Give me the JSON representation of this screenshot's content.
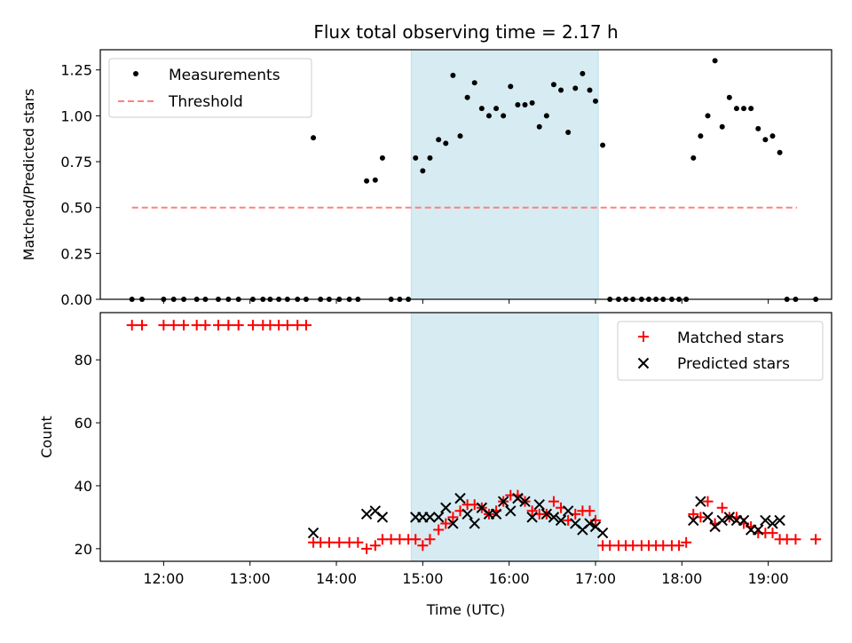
{
  "chart_data": [
    {
      "type": "scatter",
      "title": "Flux total observing time = 2.17 h",
      "xlabel": "",
      "ylabel": "Matched/Predicted stars",
      "xlim": [
        "11:16",
        "19:44"
      ],
      "ylim": [
        0,
        1.36
      ],
      "yticks": [
        "0.00",
        "0.25",
        "0.50",
        "0.75",
        "1.00",
        "1.25"
      ],
      "shaded_region": {
        "start": "14:52",
        "end": "17:02",
        "color": "#add8e6"
      },
      "legend": {
        "position": "top-left",
        "entries": [
          "Measurements",
          "Threshold"
        ]
      },
      "threshold": {
        "name": "Threshold",
        "value": 0.5,
        "x_start": "11:38",
        "x_end": "19:20",
        "color": "#ff8080"
      },
      "series": [
        {
          "name": "Measurements",
          "color": "#000000",
          "points": [
            [
              "11:38",
              0
            ],
            [
              "11:45",
              0
            ],
            [
              "12:00",
              0
            ],
            [
              "12:07",
              0
            ],
            [
              "12:14",
              0
            ],
            [
              "12:23",
              0
            ],
            [
              "12:29",
              0
            ],
            [
              "12:38",
              0
            ],
            [
              "12:45",
              0
            ],
            [
              "12:52",
              0
            ],
            [
              "13:02",
              0
            ],
            [
              "13:09",
              0
            ],
            [
              "13:14",
              0
            ],
            [
              "13:20",
              0
            ],
            [
              "13:26",
              0
            ],
            [
              "13:33",
              0
            ],
            [
              "13:39",
              0
            ],
            [
              "13:44",
              0.88
            ],
            [
              "13:49",
              0
            ],
            [
              "13:55",
              0
            ],
            [
              "14:02",
              0
            ],
            [
              "14:09",
              0
            ],
            [
              "14:15",
              0
            ],
            [
              "14:21",
              0.645
            ],
            [
              "14:27",
              0.65
            ],
            [
              "14:32",
              0.77
            ],
            [
              "14:38",
              0
            ],
            [
              "14:44",
              0
            ],
            [
              "14:50",
              0
            ],
            [
              "14:55",
              0.77
            ],
            [
              "15:00",
              0.7
            ],
            [
              "15:05",
              0.77
            ],
            [
              "15:11",
              0.87
            ],
            [
              "15:16",
              0.85
            ],
            [
              "15:21",
              1.22
            ],
            [
              "15:26",
              0.89
            ],
            [
              "15:31",
              1.1
            ],
            [
              "15:36",
              1.18
            ],
            [
              "15:41",
              1.04
            ],
            [
              "15:46",
              1.0
            ],
            [
              "15:51",
              1.04
            ],
            [
              "15:56",
              1.0
            ],
            [
              "16:01",
              1.16
            ],
            [
              "16:06",
              1.06
            ],
            [
              "16:11",
              1.06
            ],
            [
              "16:16",
              1.07
            ],
            [
              "16:21",
              0.94
            ],
            [
              "16:26",
              1.0
            ],
            [
              "16:31",
              1.17
            ],
            [
              "16:36",
              1.14
            ],
            [
              "16:41",
              0.91
            ],
            [
              "16:46",
              1.15
            ],
            [
              "16:51",
              1.23
            ],
            [
              "16:56",
              1.14
            ],
            [
              "17:00",
              1.08
            ],
            [
              "17:05",
              0.84
            ],
            [
              "17:10",
              0
            ],
            [
              "17:16",
              0
            ],
            [
              "17:21",
              0
            ],
            [
              "17:26",
              0
            ],
            [
              "17:32",
              0
            ],
            [
              "17:37",
              0
            ],
            [
              "17:42",
              0
            ],
            [
              "17:47",
              0
            ],
            [
              "17:53",
              0
            ],
            [
              "17:58",
              0
            ],
            [
              "18:03",
              0
            ],
            [
              "18:08",
              0.77
            ],
            [
              "18:13",
              0.89
            ],
            [
              "18:18",
              1.0
            ],
            [
              "18:23",
              1.3
            ],
            [
              "18:28",
              0.94
            ],
            [
              "18:33",
              1.1
            ],
            [
              "18:38",
              1.04
            ],
            [
              "18:43",
              1.04
            ],
            [
              "18:48",
              1.04
            ],
            [
              "18:53",
              0.93
            ],
            [
              "18:58",
              0.87
            ],
            [
              "19:03",
              0.89
            ],
            [
              "19:08",
              0.8
            ],
            [
              "19:13",
              0
            ],
            [
              "19:19",
              0
            ],
            [
              "19:33",
              0
            ]
          ]
        }
      ]
    },
    {
      "type": "scatter",
      "title": "",
      "xlabel": "Time (UTC)",
      "ylabel": "Count",
      "xlim": [
        "11:16",
        "19:44"
      ],
      "ylim": [
        16,
        95
      ],
      "xticks": [
        "12:00",
        "13:00",
        "14:00",
        "15:00",
        "16:00",
        "17:00",
        "18:00",
        "19:00"
      ],
      "yticks": [
        "20",
        "40",
        "60",
        "80"
      ],
      "shaded_region": {
        "start": "14:52",
        "end": "17:02",
        "color": "#add8e6"
      },
      "legend": {
        "position": "top-right",
        "entries": [
          "Matched stars",
          "Predicted stars"
        ]
      },
      "series": [
        {
          "name": "Matched stars",
          "marker": "plus",
          "color": "#ff0000",
          "points": [
            [
              "11:38",
              91
            ],
            [
              "11:45",
              91
            ],
            [
              "12:00",
              91
            ],
            [
              "12:07",
              91
            ],
            [
              "12:14",
              91
            ],
            [
              "12:23",
              91
            ],
            [
              "12:29",
              91
            ],
            [
              "12:38",
              91
            ],
            [
              "12:45",
              91
            ],
            [
              "12:52",
              91
            ],
            [
              "13:02",
              91
            ],
            [
              "13:09",
              91
            ],
            [
              "13:14",
              91
            ],
            [
              "13:20",
              91
            ],
            [
              "13:26",
              91
            ],
            [
              "13:33",
              91
            ],
            [
              "13:39",
              91
            ],
            [
              "13:44",
              22
            ],
            [
              "13:49",
              22
            ],
            [
              "13:55",
              22
            ],
            [
              "14:02",
              22
            ],
            [
              "14:09",
              22
            ],
            [
              "14:15",
              22
            ],
            [
              "14:21",
              20
            ],
            [
              "14:27",
              21
            ],
            [
              "14:32",
              23
            ],
            [
              "14:38",
              23
            ],
            [
              "14:44",
              23
            ],
            [
              "14:50",
              23
            ],
            [
              "14:55",
              23
            ],
            [
              "15:00",
              21
            ],
            [
              "15:05",
              23
            ],
            [
              "15:11",
              26
            ],
            [
              "15:16",
              28
            ],
            [
              "15:21",
              30
            ],
            [
              "15:26",
              32
            ],
            [
              "15:31",
              34
            ],
            [
              "15:36",
              34
            ],
            [
              "15:41",
              33
            ],
            [
              "15:46",
              31
            ],
            [
              "15:51",
              32
            ],
            [
              "15:56",
              35
            ],
            [
              "16:01",
              37
            ],
            [
              "16:06",
              37
            ],
            [
              "16:11",
              35
            ],
            [
              "16:16",
              32
            ],
            [
              "16:21",
              31
            ],
            [
              "16:26",
              31
            ],
            [
              "16:31",
              35
            ],
            [
              "16:36",
              33
            ],
            [
              "16:41",
              29
            ],
            [
              "16:46",
              31
            ],
            [
              "16:51",
              32
            ],
            [
              "16:56",
              32
            ],
            [
              "17:00",
              29
            ],
            [
              "17:05",
              21
            ],
            [
              "17:10",
              21
            ],
            [
              "17:16",
              21
            ],
            [
              "17:21",
              21
            ],
            [
              "17:26",
              21
            ],
            [
              "17:32",
              21
            ],
            [
              "17:37",
              21
            ],
            [
              "17:42",
              21
            ],
            [
              "17:47",
              21
            ],
            [
              "17:53",
              21
            ],
            [
              "17:58",
              21
            ],
            [
              "18:03",
              22
            ],
            [
              "18:08",
              31
            ],
            [
              "18:13",
              30
            ],
            [
              "18:18",
              35
            ],
            [
              "18:23",
              28
            ],
            [
              "18:28",
              33
            ],
            [
              "18:33",
              30
            ],
            [
              "18:38",
              30
            ],
            [
              "18:43",
              28
            ],
            [
              "18:48",
              27
            ],
            [
              "18:53",
              25
            ],
            [
              "18:58",
              25
            ],
            [
              "19:03",
              25
            ],
            [
              "19:08",
              23
            ],
            [
              "19:13",
              23
            ],
            [
              "19:19",
              23
            ],
            [
              "19:33",
              23
            ]
          ]
        },
        {
          "name": "Predicted stars",
          "marker": "x",
          "color": "#000000",
          "points": [
            [
              "13:44",
              25
            ],
            [
              "14:21",
              31
            ],
            [
              "14:27",
              32
            ],
            [
              "14:32",
              30
            ],
            [
              "14:55",
              30
            ],
            [
              "15:00",
              30
            ],
            [
              "15:05",
              30
            ],
            [
              "15:11",
              30
            ],
            [
              "15:16",
              33
            ],
            [
              "15:21",
              28
            ],
            [
              "15:26",
              36
            ],
            [
              "15:31",
              31
            ],
            [
              "15:36",
              28
            ],
            [
              "15:41",
              33
            ],
            [
              "15:46",
              31
            ],
            [
              "15:51",
              31
            ],
            [
              "15:56",
              35
            ],
            [
              "16:01",
              32
            ],
            [
              "16:06",
              36
            ],
            [
              "16:11",
              35
            ],
            [
              "16:16",
              30
            ],
            [
              "16:21",
              34
            ],
            [
              "16:26",
              31
            ],
            [
              "16:31",
              30
            ],
            [
              "16:36",
              29
            ],
            [
              "16:41",
              32
            ],
            [
              "16:46",
              28
            ],
            [
              "16:51",
              26
            ],
            [
              "16:56",
              28
            ],
            [
              "17:00",
              27
            ],
            [
              "17:05",
              25
            ],
            [
              "18:08",
              29
            ],
            [
              "18:13",
              35
            ],
            [
              "18:18",
              30
            ],
            [
              "18:23",
              27
            ],
            [
              "18:28",
              29
            ],
            [
              "18:33",
              30
            ],
            [
              "18:38",
              29
            ],
            [
              "18:43",
              29
            ],
            [
              "18:48",
              26
            ],
            [
              "18:53",
              26
            ],
            [
              "18:58",
              29
            ],
            [
              "19:03",
              28
            ],
            [
              "19:08",
              29
            ]
          ]
        }
      ]
    }
  ]
}
